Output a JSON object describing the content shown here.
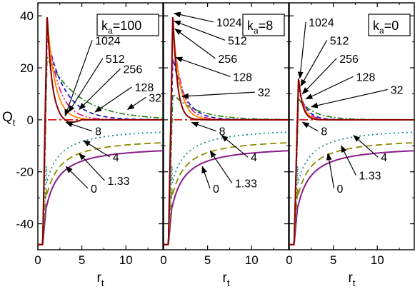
{
  "chart_data": [
    {
      "type": "line",
      "panel_label": {
        "main": "k",
        "sub": "a",
        "rest": "=100"
      },
      "xlim": [
        0,
        14.2
      ],
      "ylim": [
        -50,
        45
      ],
      "xticks": [
        "0",
        "5",
        "10"
      ],
      "yticks": [
        "40",
        "20",
        "0",
        "-20",
        "-40"
      ],
      "xlabel": {
        "main": "r",
        "sub": "t"
      },
      "ylabel": {
        "main": "Q",
        "sub": "t"
      },
      "grid": false,
      "series": [
        {
          "name": "0",
          "color": "#8B1A89",
          "dash": "",
          "peak": [
            1.0,
            0
          ],
          "tail": -28,
          "amp": 25,
          "tau": 0.6,
          "far": 0
        },
        {
          "name": "1.33",
          "color": "#8B8B00",
          "dash": "9,5",
          "peak": [
            1.0,
            0
          ],
          "tail": -22,
          "amp": 22,
          "tau": 0.55,
          "far": 0
        },
        {
          "name": "4",
          "color": "#1A8B8B",
          "dash": "2,4",
          "peak": [
            1.0,
            0
          ],
          "tail": -14,
          "amp": 16,
          "tau": 0.5,
          "far": 0
        },
        {
          "name": "8",
          "color": "#E31A1C",
          "dash": "12,4,3,4",
          "peak": [
            1.0,
            0
          ],
          "tail": 0,
          "amp": 0,
          "tau": 1,
          "far": 0
        },
        {
          "name": "32",
          "color": "#2E8B22",
          "dash": "8,3,2,3",
          "peak": [
            1.0,
            24
          ],
          "tail": 12,
          "amp": 8,
          "tau": 3.5,
          "far": 0
        },
        {
          "name": "128",
          "color": "#1A1ACC",
          "dash": "6,4",
          "peak": [
            1.0,
            32
          ],
          "tail": 11,
          "amp": 12,
          "tau": 2.2,
          "far": 0
        },
        {
          "name": "256",
          "color": "#E31A8B",
          "dash": "10,3,2,3,2,3",
          "peak": [
            1.0,
            36
          ],
          "tail": 8,
          "amp": 12,
          "tau": 1.6,
          "far": 0
        },
        {
          "name": "512",
          "color": "#FF8800",
          "dash": "",
          "peak": [
            1.0,
            40
          ],
          "tail": 4,
          "amp": 8,
          "tau": 1.2,
          "far": 0
        },
        {
          "name": "1024",
          "color": "#8B0000",
          "dash": "",
          "peak": [
            1.0,
            41
          ],
          "tail": 0,
          "amp": 0,
          "tau": 1,
          "far": 0
        }
      ],
      "annotations": [
        {
          "text": "1024",
          "x": 6.5,
          "y": 29,
          "ax": 3.1,
          "ay": 1.5
        },
        {
          "text": "512",
          "x": 7.7,
          "y": 22,
          "ax": 3.5,
          "ay": 3
        },
        {
          "text": "256",
          "x": 9.7,
          "y": 18,
          "ax": 4.7,
          "ay": 4
        },
        {
          "text": "128",
          "x": 11,
          "y": 11,
          "ax": 6.5,
          "ay": 3
        },
        {
          "text": "32",
          "x": 12.6,
          "y": 7,
          "ax": 10.2,
          "ay": 4
        },
        {
          "text": "8",
          "x": 6.5,
          "y": -6,
          "ax": 3.2,
          "ay": -1
        },
        {
          "text": "4",
          "x": 8.5,
          "y": -16,
          "ax": 5.2,
          "ay": -8
        },
        {
          "text": "1.33",
          "x": 7.9,
          "y": -25,
          "ax": 4.7,
          "ay": -13
        },
        {
          "text": "0",
          "x": 6,
          "y": -28,
          "ax": 3.2,
          "ay": -18
        }
      ]
    },
    {
      "type": "line",
      "panel_label": {
        "main": "k",
        "sub": "a",
        "rest": "=8"
      },
      "xlim": [
        0,
        14.2
      ],
      "ylim": [
        -50,
        45
      ],
      "xticks": [
        "0",
        "5",
        "10"
      ],
      "yticks": [],
      "xlabel": {
        "main": "r",
        "sub": "t"
      },
      "grid": false,
      "series": [
        {
          "name": "0",
          "color": "#8B1A89",
          "dash": ""
        },
        {
          "name": "1.33",
          "color": "#8B8B00",
          "dash": "9,5"
        },
        {
          "name": "4",
          "color": "#1A8B8B",
          "dash": "2,4"
        },
        {
          "name": "8",
          "color": "#E31A1C",
          "dash": "12,4,3,4"
        },
        {
          "name": "32",
          "color": "#2E8B22",
          "dash": "8,3,2,3"
        },
        {
          "name": "128",
          "color": "#1A1ACC",
          "dash": "6,4"
        },
        {
          "name": "256",
          "color": "#E31A8B",
          "dash": "10,3,2,3,2,3"
        },
        {
          "name": "512",
          "color": "#FF8800",
          "dash": ""
        },
        {
          "name": "1024",
          "color": "#8B0000",
          "dash": ""
        }
      ],
      "annotations": [
        {
          "text": "1024",
          "x": 6,
          "y": 36,
          "ax": 1.2,
          "ay": 41
        },
        {
          "text": "512",
          "x": 7.3,
          "y": 29,
          "ax": 1.2,
          "ay": 38
        },
        {
          "text": "256",
          "x": 6.2,
          "y": 22,
          "ax": 1.3,
          "ay": 35
        },
        {
          "text": "128",
          "x": 7.9,
          "y": 15,
          "ax": 1.4,
          "ay": 24
        },
        {
          "text": "32",
          "x": 10.7,
          "y": 9,
          "ax": 2.1,
          "ay": 9
        },
        {
          "text": "8",
          "x": 6.3,
          "y": -6,
          "ax": 3.2,
          "ay": -1
        },
        {
          "text": "4",
          "x": 9.9,
          "y": -16,
          "ax": 6.6,
          "ay": -6
        },
        {
          "text": "1.33",
          "x": 8.1,
          "y": -26,
          "ax": 5.3,
          "ay": -12
        },
        {
          "text": "0",
          "x": 5.6,
          "y": -28,
          "ax": 4.4,
          "ay": -18
        }
      ]
    },
    {
      "type": "line",
      "panel_label": {
        "main": "k",
        "sub": "a",
        "rest": "=0"
      },
      "xlim": [
        0,
        14.2
      ],
      "ylim": [
        -50,
        45
      ],
      "xticks": [
        "0",
        "5",
        "10"
      ],
      "yticks": [],
      "xlabel": {
        "main": "r",
        "sub": "t"
      },
      "grid": false,
      "series": [
        {
          "name": "0",
          "color": "#8B1A89",
          "dash": ""
        },
        {
          "name": "1.33",
          "color": "#8B8B00",
          "dash": "9,5"
        },
        {
          "name": "4",
          "color": "#1A8B8B",
          "dash": "2,4"
        },
        {
          "name": "8",
          "color": "#E31A1C",
          "dash": "12,4,3,4"
        },
        {
          "name": "32",
          "color": "#2E8B22",
          "dash": "8,3,2,3"
        },
        {
          "name": "128",
          "color": "#1A1ACC",
          "dash": "6,4"
        },
        {
          "name": "256",
          "color": "#E31A8B",
          "dash": "10,3,2,3,2,3"
        },
        {
          "name": "512",
          "color": "#FF8800",
          "dash": ""
        },
        {
          "name": "1024",
          "color": "#8B0000",
          "dash": ""
        }
      ],
      "annotations": [
        {
          "text": "1024",
          "x": 2.2,
          "y": 36,
          "ax": 1.2,
          "ay": 16
        },
        {
          "text": "512",
          "x": 4.6,
          "y": 29,
          "ax": 1.3,
          "ay": 13
        },
        {
          "text": "256",
          "x": 5.7,
          "y": 22,
          "ax": 1.5,
          "ay": 10
        },
        {
          "text": "128",
          "x": 7.6,
          "y": 15,
          "ax": 1.9,
          "ay": 8
        },
        {
          "text": "32",
          "x": 11.5,
          "y": 10,
          "ax": 2.5,
          "ay": 5
        },
        {
          "text": "8",
          "x": 3.6,
          "y": -6,
          "ax": 1.5,
          "ay": -1
        },
        {
          "text": "4",
          "x": 10.4,
          "y": -16,
          "ax": 7.3,
          "ay": -6
        },
        {
          "text": "1.33",
          "x": 7.9,
          "y": -23,
          "ax": 5.9,
          "ay": -10
        },
        {
          "text": "0",
          "x": 5.4,
          "y": -28,
          "ax": 4.4,
          "ay": -13
        }
      ]
    }
  ]
}
